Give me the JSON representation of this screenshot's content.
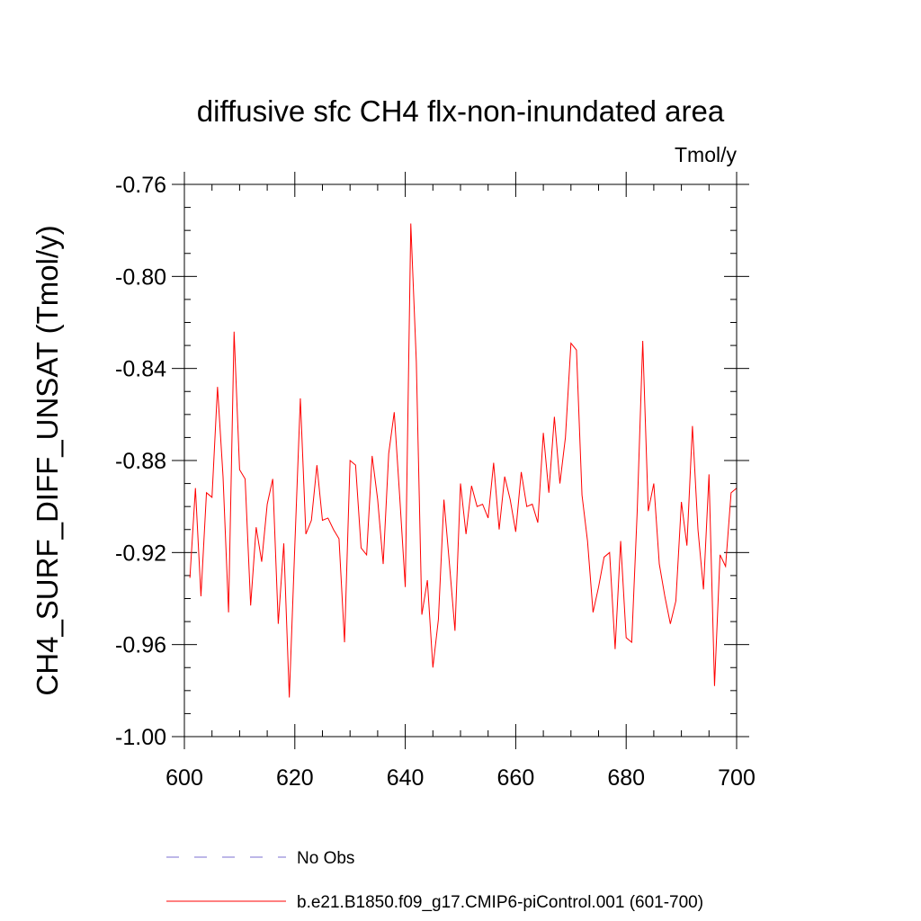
{
  "chart_data": {
    "type": "line",
    "title": "diffusive sfc CH4 flx-non-inundated area",
    "units": "Tmol/y",
    "xlabel": "",
    "ylabel": "CH4_SURF_DIFF_UNSAT  (Tmol/y)",
    "xlim": [
      600,
      700
    ],
    "ylim": [
      -1.0,
      -0.76
    ],
    "xticks": [
      600,
      620,
      640,
      660,
      680,
      700
    ],
    "xtick_labels": [
      "600",
      "620",
      "640",
      "660",
      "680",
      "700"
    ],
    "yticks": [
      -1.0,
      -0.96,
      -0.92,
      -0.88,
      -0.84,
      -0.8,
      -0.76
    ],
    "ytick_labels": [
      "-1.00",
      "-0.96",
      "-0.92",
      "-0.88",
      "-0.84",
      "-0.80",
      "-0.76"
    ],
    "grid": false,
    "x_start": 601,
    "series": [
      {
        "name": "b.e21.B1850.f09_g17.CMIP6-piControl.001 (601-700)",
        "color": "#ff0000",
        "style": "solid",
        "values": [
          -0.931,
          -0.892,
          -0.939,
          -0.894,
          -0.896,
          -0.848,
          -0.887,
          -0.946,
          -0.824,
          -0.884,
          -0.888,
          -0.943,
          -0.909,
          -0.924,
          -0.899,
          -0.888,
          -0.951,
          -0.916,
          -0.983,
          -0.917,
          -0.853,
          -0.912,
          -0.906,
          -0.882,
          -0.906,
          -0.905,
          -0.91,
          -0.914,
          -0.959,
          -0.88,
          -0.882,
          -0.918,
          -0.921,
          -0.878,
          -0.897,
          -0.925,
          -0.877,
          -0.859,
          -0.896,
          -0.935,
          -0.777,
          -0.837,
          -0.947,
          -0.932,
          -0.97,
          -0.949,
          -0.897,
          -0.925,
          -0.954,
          -0.89,
          -0.912,
          -0.891,
          -0.9,
          -0.899,
          -0.905,
          -0.881,
          -0.91,
          -0.887,
          -0.897,
          -0.911,
          -0.885,
          -0.9,
          -0.899,
          -0.907,
          -0.868,
          -0.894,
          -0.861,
          -0.89,
          -0.87,
          -0.829,
          -0.832,
          -0.895,
          -0.915,
          -0.946,
          -0.935,
          -0.922,
          -0.92,
          -0.962,
          -0.915,
          -0.957,
          -0.959,
          -0.902,
          -0.828,
          -0.902,
          -0.89,
          -0.925,
          -0.939,
          -0.951,
          -0.941,
          -0.898,
          -0.917,
          -0.865,
          -0.91,
          -0.936,
          -0.886,
          -0.978,
          -0.921,
          -0.926,
          -0.894,
          -0.892
        ]
      },
      {
        "name": "No Obs",
        "color": "#7b6fd0",
        "style": "dashed",
        "values": []
      }
    ],
    "legend_position": "bottom"
  }
}
